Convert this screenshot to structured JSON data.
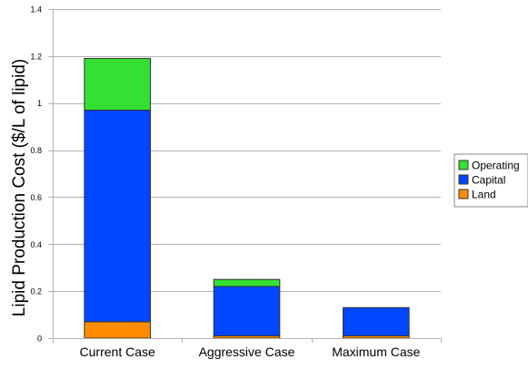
{
  "chart_data": {
    "type": "bar",
    "stacked": true,
    "title": "",
    "xlabel": "",
    "ylabel": "Lipid Production Cost ($/L of lipid)",
    "categories": [
      "Current Case",
      "Aggressive Case",
      "Maximum Case"
    ],
    "ylim": [
      0,
      1.4
    ],
    "yticks": [
      0,
      0.2,
      0.4,
      0.6,
      0.8,
      1,
      1.2,
      1.4
    ],
    "ytick_labels": [
      "0",
      "0.2",
      "0.4",
      "0.6",
      "0.8",
      "1",
      "1.2",
      "1.4"
    ],
    "grid": true,
    "legend_position": "right",
    "series": [
      {
        "name": "Land",
        "color": "#ff8c00",
        "values": [
          0.07,
          0.01,
          0.01
        ]
      },
      {
        "name": "Capital",
        "color": "#0047ff",
        "values": [
          0.9,
          0.21,
          0.12
        ]
      },
      {
        "name": "Operating",
        "color": "#33e033",
        "values": [
          0.22,
          0.03,
          0.0
        ]
      }
    ],
    "legend_order": [
      "Operating",
      "Capital",
      "Land"
    ]
  }
}
